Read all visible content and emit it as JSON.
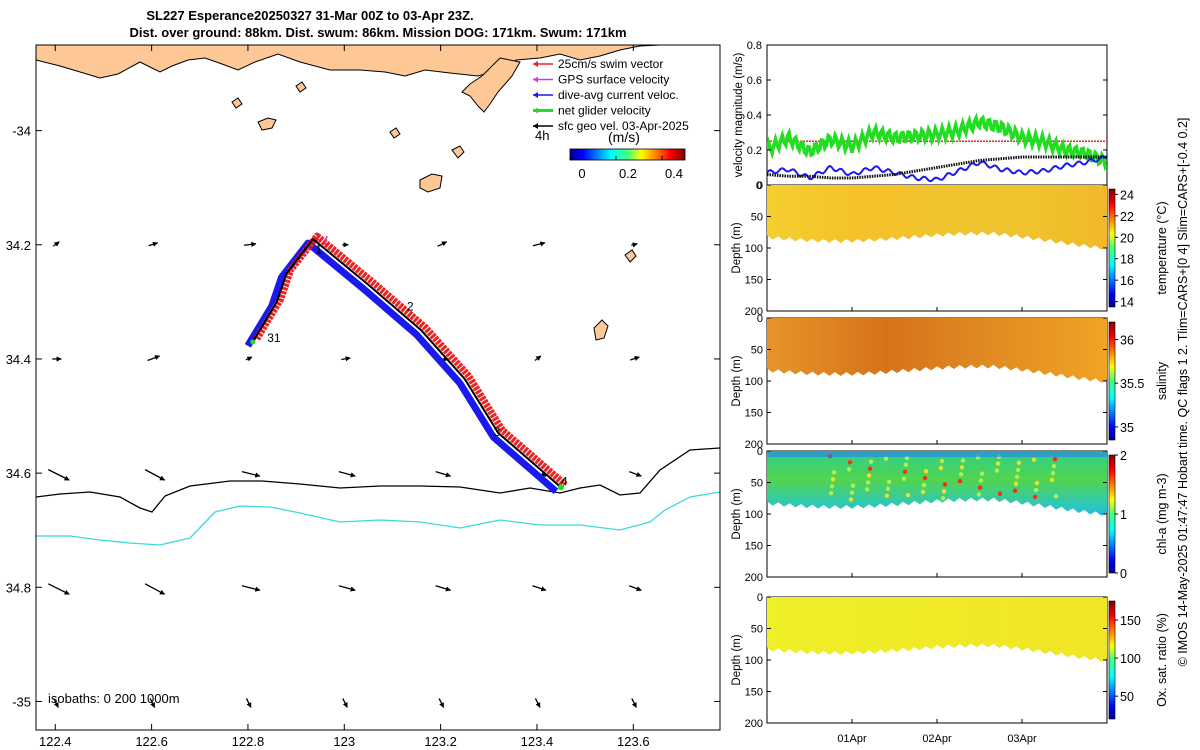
{
  "title": {
    "line1": "SL227 Esperance20250327 31-Mar 00Z to 03-Apr 23Z.",
    "line2": "Dist. over ground: 88km. Dist. swum: 86km. Mission DOG: 171km. Swum: 171km"
  },
  "side_caption": "© IMOS 14-May-2025 01:47:47 Hobart time. QC flags 1  2. Tlim=CARS+[0 4] Slim=CARS+[-0.4 0.2]",
  "colors": {
    "land": "#fdc896",
    "swim_vector": "#ee2222",
    "gps_velocity": "#dd33dd",
    "current": "#1a1aee",
    "net_velocity": "#22dd22",
    "geo_velocity": "#000000",
    "isobath_200": "#000000",
    "isobath_1000": "#3fd8d8"
  },
  "map": {
    "x_ticks": [
      "122.4",
      "122.6",
      "122.8",
      "123",
      "123.2",
      "123.4",
      "123.6"
    ],
    "x_tick_values": [
      122.4,
      122.6,
      122.8,
      123.0,
      123.2,
      123.4,
      123.6
    ],
    "y_ticks": [
      "-34",
      "34.2",
      "34.4",
      "34.6",
      "34.8",
      "-35"
    ],
    "y_tick_values": [
      -34.0,
      -34.2,
      -34.4,
      -34.6,
      -34.8,
      -35.0
    ],
    "lon_range": [
      122.36,
      123.78
    ],
    "lat_range": [
      -35.05,
      -33.85
    ],
    "legend": [
      {
        "label": "25cm/s swim vector",
        "color_key": "swim_vector"
      },
      {
        "label": "GPS surface velocity",
        "color_key": "gps_velocity"
      },
      {
        "label": "dive-avg current veloc.",
        "color_key": "current"
      },
      {
        "label": "net glider velocity",
        "color_key": "net_velocity"
      },
      {
        "label": "sfc geo vel. 03-Apr-2025",
        "color_key": "geo_velocity"
      }
    ],
    "colorbar": {
      "prefix": "4h",
      "unit": "(m/s)",
      "ticks": [
        "0",
        "0.2",
        "0.4"
      ],
      "range": [
        0,
        0.5
      ]
    },
    "isobath_label": "isobaths: 0   200  1000m",
    "track_labels": [
      {
        "text": "1",
        "lon": 122.94,
        "lat": -34.215
      },
      {
        "text": "2",
        "lon": 123.13,
        "lat": -34.315
      },
      {
        "text": "3",
        "lon": 123.31,
        "lat": -34.535
      },
      {
        "text": "4",
        "lon": 123.45,
        "lat": -34.622
      },
      {
        "text": "31",
        "lon": 122.84,
        "lat": -34.37
      }
    ],
    "track_waypoints": [
      {
        "lon": 122.81,
        "lat": -34.37
      },
      {
        "lon": 122.86,
        "lat": -34.3
      },
      {
        "lon": 122.88,
        "lat": -34.25
      },
      {
        "lon": 122.935,
        "lat": -34.19
      },
      {
        "lon": 123.05,
        "lat": -34.27
      },
      {
        "lon": 123.16,
        "lat": -34.35
      },
      {
        "lon": 123.25,
        "lat": -34.435
      },
      {
        "lon": 123.32,
        "lat": -34.53
      },
      {
        "lon": 123.45,
        "lat": -34.625
      }
    ]
  },
  "velocity_panel": {
    "ylabel": "velocity magnitude (m/s)",
    "y_ticks": [
      "0",
      "0.2",
      "0.4",
      "0.6",
      "0.8"
    ],
    "ylim": [
      0,
      0.8
    ],
    "swim_level": 0.25
  },
  "profiles": [
    {
      "id": "temperature",
      "ylabel": "Depth (m)",
      "cbar_label": "temperature (°C)",
      "cbar_ticks": [
        "14",
        "16",
        "18",
        "20",
        "22",
        "24"
      ],
      "cbar_range": [
        13.5,
        24.5
      ],
      "y_ticks": [
        "0",
        "50",
        "100",
        "150",
        "200"
      ]
    },
    {
      "id": "salinity",
      "ylabel": "Depth (m)",
      "cbar_label": "salinity",
      "cbar_ticks": [
        "35",
        "35.5",
        "36"
      ],
      "cbar_range": [
        34.85,
        36.2
      ],
      "y_ticks": [
        "0",
        "50",
        "100",
        "150",
        "200"
      ]
    },
    {
      "id": "chla",
      "ylabel": "Depth (m)",
      "cbar_label": "chl-a (mg m-3)",
      "cbar_ticks": [
        "0",
        "1",
        "2"
      ],
      "cbar_range": [
        0,
        2
      ],
      "y_ticks": [
        "0",
        "50",
        "100",
        "150",
        "200"
      ]
    },
    {
      "id": "oxsat",
      "ylabel": "Depth (m)",
      "cbar_label": "Ox. sat. ratio (%)",
      "cbar_ticks": [
        "50",
        "100",
        "150"
      ],
      "cbar_range": [
        20,
        175
      ],
      "y_ticks": [
        "0",
        "50",
        "100",
        "150",
        "200"
      ]
    }
  ],
  "time_axis": {
    "labels": [
      "01Apr",
      "02Apr",
      "03Apr"
    ],
    "day_fractions": [
      1,
      2,
      3
    ],
    "days": 4
  },
  "chart_data": {
    "type": "line",
    "title": "SL227 Esperance20250327 31-Mar 00Z to 03-Apr 23Z.",
    "xlabel": "",
    "ylabel": "velocity magnitude (m/s)",
    "ylim": [
      0,
      0.8
    ],
    "x": [
      0,
      0.25,
      0.5,
      0.75,
      1,
      1.25,
      1.5,
      1.75,
      2,
      2.25,
      2.5,
      2.75,
      3,
      3.25,
      3.5,
      3.75,
      4
    ],
    "series": [
      {
        "name": "25cm/s swim vector",
        "values": [
          0.25,
          0.25,
          0.25,
          0.25,
          0.25,
          0.25,
          0.25,
          0.25,
          0.25,
          0.25,
          0.25,
          0.25,
          0.25,
          0.25,
          0.25,
          0.25,
          0.25
        ]
      },
      {
        "name": "net glider velocity",
        "values": [
          0.2,
          0.27,
          0.19,
          0.26,
          0.22,
          0.3,
          0.27,
          0.28,
          0.29,
          0.31,
          0.36,
          0.33,
          0.27,
          0.25,
          0.2,
          0.18,
          0.13
        ]
      },
      {
        "name": "dive-avg current veloc.",
        "values": [
          0.07,
          0.09,
          0.04,
          0.1,
          0.06,
          0.1,
          0.07,
          0.04,
          0.03,
          0.08,
          0.13,
          0.09,
          0.07,
          0.08,
          0.11,
          0.13,
          0.16
        ]
      },
      {
        "name": "sfc geo vel.",
        "values": [
          0.06,
          0.05,
          0.05,
          0.04,
          0.04,
          0.05,
          0.06,
          0.08,
          0.1,
          0.12,
          0.14,
          0.15,
          0.16,
          0.16,
          0.16,
          0.16,
          0.16
        ]
      }
    ]
  }
}
